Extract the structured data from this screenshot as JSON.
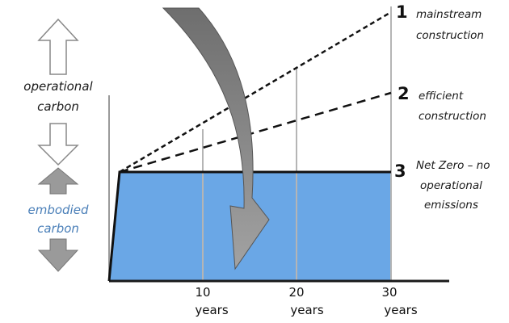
{
  "colors": {
    "embodied_fill": "#6aa7e6",
    "embodied_text": "#4a7fb8",
    "operational_text": "#1a1a1a",
    "arrow_gray": "#8a8a8a",
    "arrow_outline": "#888888",
    "gridline": "#b5b5b5"
  },
  "legend": {
    "operational_line1": "operational",
    "operational_line2": "carbon",
    "embodied_line1": "embodied",
    "embodied_line2": "carbon"
  },
  "scenarios": [
    {
      "number": "1",
      "line1": "mainstream",
      "line2": "construction",
      "line3": ""
    },
    {
      "number": "2",
      "line1": "efficient",
      "line2": "construction",
      "line3": ""
    },
    {
      "number": "3",
      "line1": "Net Zero – no",
      "line2": "operational",
      "line3": "emissions"
    }
  ],
  "axis": {
    "ticks": [
      {
        "value": "10",
        "unit": "years"
      },
      {
        "value": "20",
        "unit": "years"
      },
      {
        "value": "30",
        "unit": "years"
      }
    ]
  }
}
